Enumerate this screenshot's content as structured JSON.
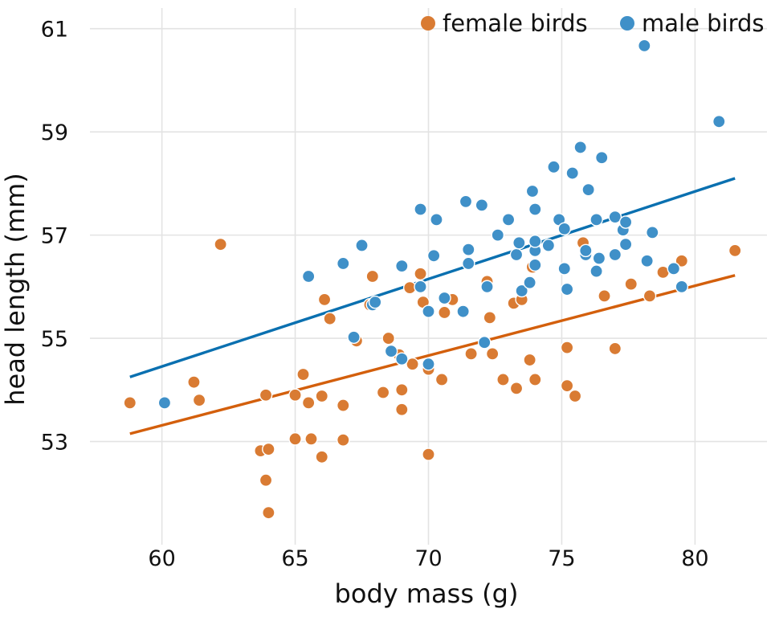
{
  "chart_data": {
    "type": "scatter",
    "title": "",
    "xlabel": "body mass (g)",
    "ylabel": "head length (mm)",
    "xlim": [
      57.3,
      82.7
    ],
    "ylim": [
      51.0,
      61.4
    ],
    "xticks": [
      60,
      65,
      70,
      75,
      80
    ],
    "yticks": [
      53,
      55,
      57,
      59,
      61
    ],
    "grid": true,
    "legend_position": "top-right",
    "series": [
      {
        "name": "female birds",
        "color": "#d97b33",
        "line_color": "#d35f0c",
        "fit": {
          "x": [
            58.8,
            81.5
          ],
          "y": [
            53.15,
            56.22
          ]
        },
        "points": [
          [
            58.8,
            53.75
          ],
          [
            61.2,
            54.15
          ],
          [
            61.4,
            53.8
          ],
          [
            62.2,
            56.82
          ],
          [
            63.7,
            52.82
          ],
          [
            63.9,
            53.9
          ],
          [
            64.0,
            52.85
          ],
          [
            63.9,
            52.25
          ],
          [
            64.0,
            51.62
          ],
          [
            65.0,
            53.9
          ],
          [
            65.0,
            53.05
          ],
          [
            65.3,
            54.3
          ],
          [
            65.5,
            53.75
          ],
          [
            65.6,
            53.05
          ],
          [
            66.0,
            53.88
          ],
          [
            66.0,
            52.7
          ],
          [
            66.1,
            55.75
          ],
          [
            66.3,
            55.38
          ],
          [
            66.8,
            53.7
          ],
          [
            66.8,
            53.03
          ],
          [
            67.3,
            54.95
          ],
          [
            67.9,
            56.2
          ],
          [
            67.8,
            55.65
          ],
          [
            68.3,
            53.95
          ],
          [
            68.5,
            55.0
          ],
          [
            68.9,
            54.68
          ],
          [
            69.0,
            54.0
          ],
          [
            69.0,
            53.62
          ],
          [
            69.3,
            55.98
          ],
          [
            69.4,
            54.5
          ],
          [
            69.7,
            56.25
          ],
          [
            69.8,
            55.7
          ],
          [
            70.0,
            54.4
          ],
          [
            70.0,
            52.75
          ],
          [
            70.5,
            54.2
          ],
          [
            70.6,
            55.5
          ],
          [
            70.9,
            55.75
          ],
          [
            71.6,
            54.7
          ],
          [
            72.2,
            56.1
          ],
          [
            72.3,
            55.4
          ],
          [
            72.4,
            54.7
          ],
          [
            72.8,
            54.2
          ],
          [
            73.2,
            55.68
          ],
          [
            73.3,
            54.03
          ],
          [
            73.5,
            55.75
          ],
          [
            73.8,
            54.58
          ],
          [
            73.9,
            56.38
          ],
          [
            74.0,
            54.2
          ],
          [
            75.2,
            54.82
          ],
          [
            75.2,
            54.08
          ],
          [
            75.5,
            53.88
          ],
          [
            75.8,
            56.85
          ],
          [
            76.6,
            55.82
          ],
          [
            77.0,
            54.8
          ],
          [
            77.6,
            56.05
          ],
          [
            78.3,
            55.82
          ],
          [
            78.8,
            56.28
          ],
          [
            79.5,
            56.5
          ],
          [
            81.5,
            56.7
          ]
        ]
      },
      {
        "name": "male birds",
        "color": "#3f90c8",
        "line_color": "#0a70b0",
        "fit": {
          "x": [
            58.8,
            81.5
          ],
          "y": [
            54.25,
            58.1
          ]
        },
        "points": [
          [
            60.1,
            53.75
          ],
          [
            65.5,
            56.2
          ],
          [
            66.8,
            56.45
          ],
          [
            67.2,
            55.02
          ],
          [
            67.5,
            56.8
          ],
          [
            67.9,
            55.65
          ],
          [
            68.0,
            55.7
          ],
          [
            68.6,
            54.75
          ],
          [
            69.0,
            54.6
          ],
          [
            69.0,
            56.4
          ],
          [
            69.7,
            56.0
          ],
          [
            69.7,
            57.5
          ],
          [
            70.0,
            55.52
          ],
          [
            70.0,
            54.5
          ],
          [
            70.2,
            56.6
          ],
          [
            70.3,
            57.3
          ],
          [
            70.6,
            55.78
          ],
          [
            71.3,
            55.52
          ],
          [
            71.4,
            57.65
          ],
          [
            71.5,
            56.45
          ],
          [
            71.5,
            56.72
          ],
          [
            72.0,
            57.58
          ],
          [
            72.1,
            54.92
          ],
          [
            72.2,
            56.0
          ],
          [
            72.6,
            57.0
          ],
          [
            73.0,
            57.3
          ],
          [
            73.3,
            56.62
          ],
          [
            73.4,
            56.85
          ],
          [
            73.5,
            55.92
          ],
          [
            73.8,
            56.08
          ],
          [
            73.9,
            57.85
          ],
          [
            74.0,
            56.42
          ],
          [
            74.0,
            56.7
          ],
          [
            74.0,
            56.88
          ],
          [
            74.0,
            57.5
          ],
          [
            74.5,
            56.8
          ],
          [
            74.7,
            58.32
          ],
          [
            74.9,
            57.3
          ],
          [
            75.1,
            56.35
          ],
          [
            75.1,
            57.12
          ],
          [
            75.2,
            55.95
          ],
          [
            75.4,
            58.2
          ],
          [
            75.7,
            58.7
          ],
          [
            75.9,
            56.62
          ],
          [
            75.9,
            56.7
          ],
          [
            76.0,
            57.88
          ],
          [
            76.3,
            56.3
          ],
          [
            76.3,
            57.3
          ],
          [
            76.4,
            56.55
          ],
          [
            76.5,
            58.5
          ],
          [
            77.0,
            57.35
          ],
          [
            77.0,
            56.62
          ],
          [
            77.3,
            57.1
          ],
          [
            77.4,
            57.25
          ],
          [
            77.4,
            56.82
          ],
          [
            78.1,
            60.67
          ],
          [
            78.2,
            56.5
          ],
          [
            78.4,
            57.05
          ],
          [
            79.2,
            56.35
          ],
          [
            79.5,
            56.0
          ],
          [
            80.9,
            59.2
          ]
        ]
      }
    ]
  }
}
